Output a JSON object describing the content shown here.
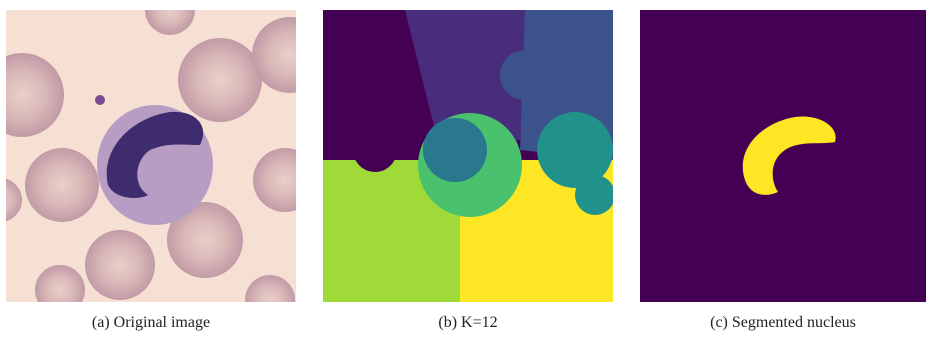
{
  "figure": {
    "panels": [
      {
        "caption": "(a) Original image"
      },
      {
        "caption": "(b) K=12"
      },
      {
        "caption": "(c) Segmented nucleus"
      }
    ]
  }
}
